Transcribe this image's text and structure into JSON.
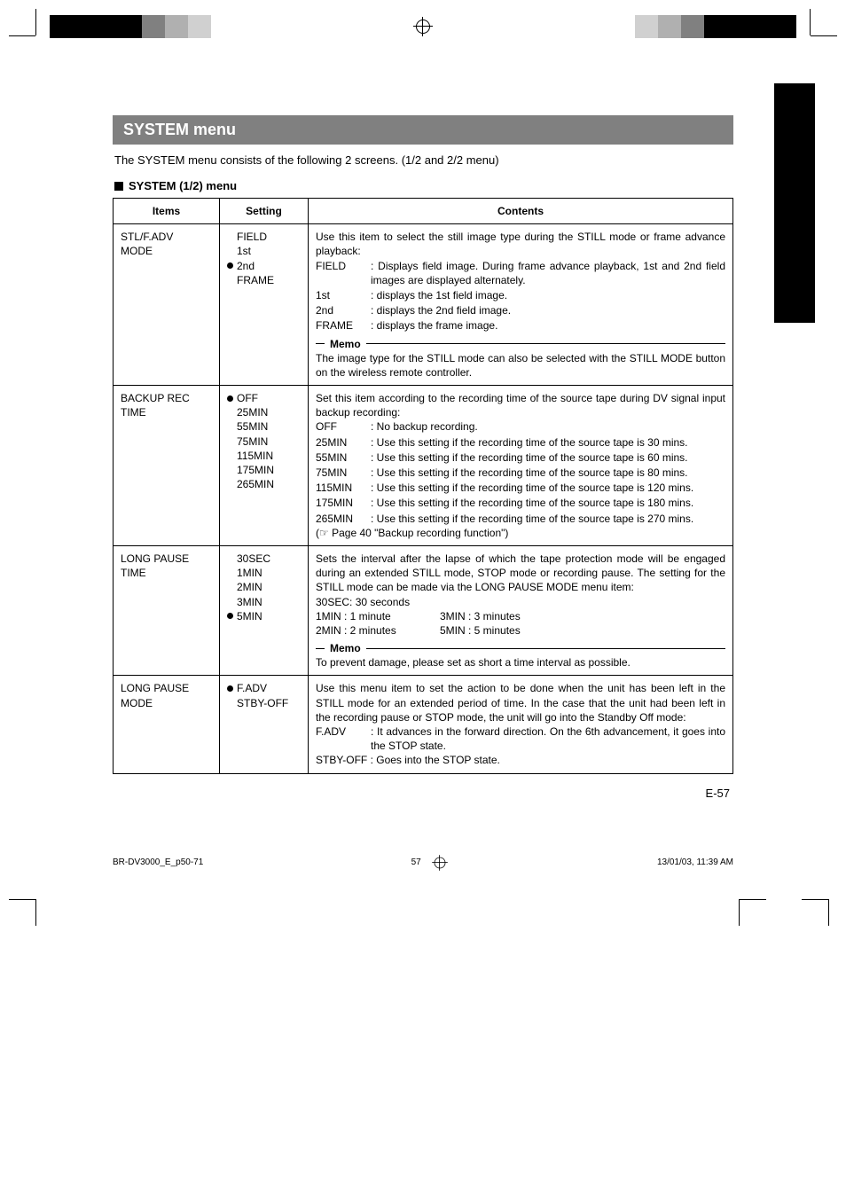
{
  "regbar": {
    "left_colors": [
      "#000000",
      "#000000",
      "#000000",
      "#000000",
      "#808080",
      "#b0b0b0",
      "#d0d0d0"
    ],
    "right_colors": [
      "#d0d0d0",
      "#b0b0b0",
      "#808080",
      "#000000",
      "#000000",
      "#000000",
      "#000000"
    ]
  },
  "title": "SYSTEM menu",
  "intro": "The SYSTEM menu consists of the following 2 screens. (1/2 and 2/2 menu)",
  "subhead": "SYSTEM (1/2) menu",
  "headers": {
    "items": "Items",
    "setting": "Setting",
    "contents": "Contents"
  },
  "rows": [
    {
      "item_l1": "STL/F.ADV",
      "item_l2": "MODE",
      "settings": [
        {
          "bullet": false,
          "label": "FIELD"
        },
        {
          "bullet": false,
          "label": "1st"
        },
        {
          "bullet": true,
          "label": "2nd"
        },
        {
          "bullet": false,
          "label": "FRAME"
        }
      ],
      "lead": "Use this item to select the still image type during the STILL mode or frame advance playback:",
      "defs": [
        {
          "k": "FIELD",
          "v": ": Displays field image. During frame advance playback, 1st and 2nd field images are displayed alternately."
        },
        {
          "k": "1st",
          "v": ": displays the 1st field image."
        },
        {
          "k": "2nd",
          "v": ": displays the 2nd field image."
        },
        {
          "k": "FRAME",
          "v": ": displays the frame image."
        }
      ],
      "memo_label": "Memo",
      "memo_text": "The image type for the STILL mode can also be selected with the STILL MODE button on the wireless remote controller."
    },
    {
      "item_l1": "BACKUP REC",
      "item_l2": "TIME",
      "settings": [
        {
          "bullet": true,
          "label": "OFF"
        },
        {
          "bullet": false,
          "label": "25MIN"
        },
        {
          "bullet": false,
          "label": "55MIN"
        },
        {
          "bullet": false,
          "label": "75MIN"
        },
        {
          "bullet": false,
          "label": "115MIN"
        },
        {
          "bullet": false,
          "label": "175MIN"
        },
        {
          "bullet": false,
          "label": "265MIN"
        }
      ],
      "lead": "Set this item according to the recording time of the source tape during DV signal input backup recording:",
      "defs": [
        {
          "k": "OFF",
          "v": ": No backup recording."
        },
        {
          "k": "25MIN",
          "v": ": Use this setting if the recording time of the source tape is 30 mins."
        },
        {
          "k": "55MIN",
          "v": ": Use this setting if the recording time of the source tape is 60 mins."
        },
        {
          "k": "75MIN",
          "v": ": Use this setting if the recording time of the source tape is 80 mins."
        },
        {
          "k": "115MIN",
          "v": ": Use this setting if the recording time of the source tape is 120 mins."
        },
        {
          "k": "175MIN",
          "v": ": Use this setting if the recording time of the source tape is 180 mins."
        },
        {
          "k": "265MIN",
          "v": ": Use this setting if the recording time of the source tape is 270 mins."
        }
      ],
      "trailer": "(☞ Page 40 \"Backup recording function\")"
    },
    {
      "item_l1": "LONG PAUSE",
      "item_l2": "TIME",
      "settings": [
        {
          "bullet": false,
          "label": "30SEC"
        },
        {
          "bullet": false,
          "label": "1MIN"
        },
        {
          "bullet": false,
          "label": "2MIN"
        },
        {
          "bullet": false,
          "label": "3MIN"
        },
        {
          "bullet": true,
          "label": "5MIN"
        }
      ],
      "lead": "Sets the interval after the lapse of which the tape protection mode will be engaged during an extended STILL mode, STOP mode or recording pause. The setting for the STILL mode can be made via the LONG PAUSE MODE menu item:",
      "line_30": "30SEC: 30 seconds",
      "times": [
        {
          "l": "1MIN  : 1 minute",
          "r": "3MIN  : 3 minutes"
        },
        {
          "l": "2MIN  : 2 minutes",
          "r": "5MIN  : 5 minutes"
        }
      ],
      "memo_label": "Memo",
      "memo_text": "To prevent damage, please set as short a time interval as possible."
    },
    {
      "item_l1": "LONG PAUSE",
      "item_l2": "MODE",
      "settings": [
        {
          "bullet": true,
          "label": "F.ADV"
        },
        {
          "bullet": false,
          "label": "STBY-OFF"
        }
      ],
      "lead": "Use this menu item to set the action to be done when the unit has been left in the STILL mode for an extended period of time. In the case that the unit had been left in the recording pause or STOP mode, the unit will go into the Standby Off mode:",
      "defs": [
        {
          "k": "F.ADV",
          "v": ": It advances in the forward direction. On the 6th advancement, it goes into the STOP state."
        }
      ],
      "trailer": "STBY-OFF : Goes into the STOP state."
    }
  ],
  "pagenum": "E-57",
  "footer": {
    "left": "BR-DV3000_E_p50-71",
    "mid": "57",
    "right": "13/01/03, 11:39 AM"
  }
}
